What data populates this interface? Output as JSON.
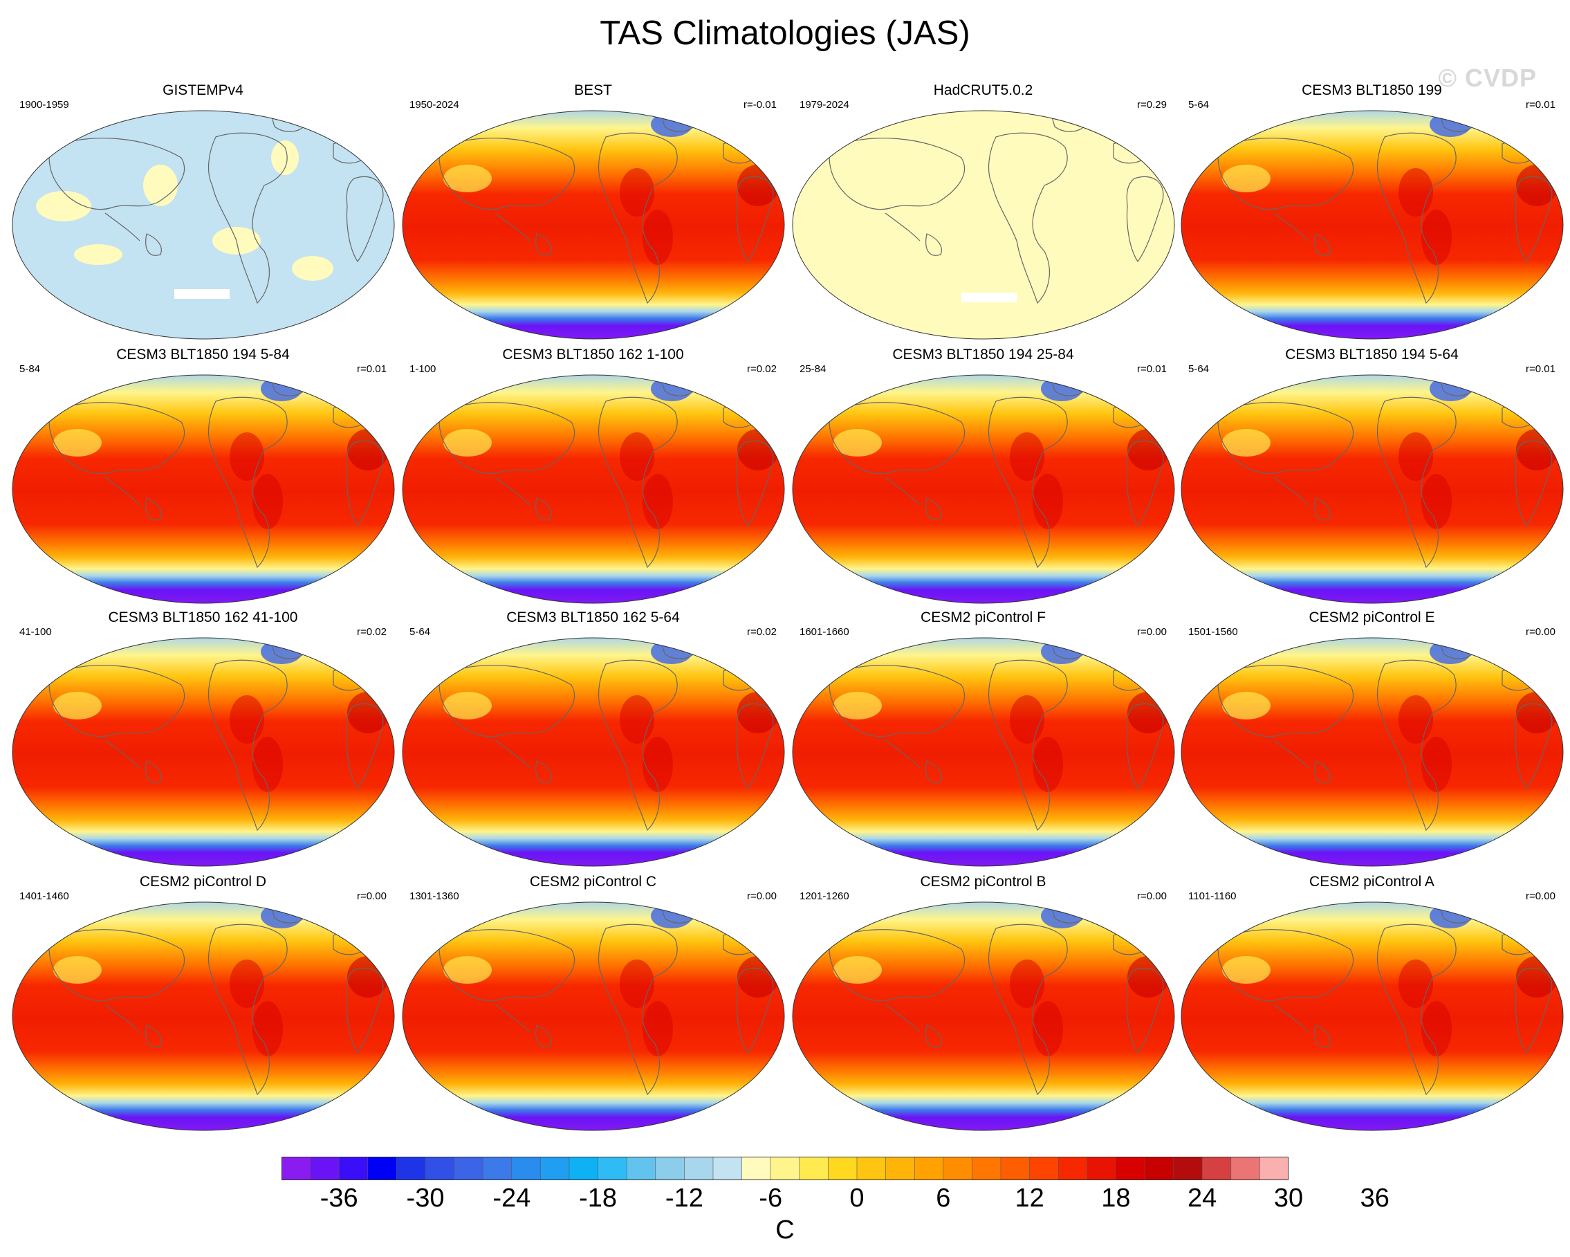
{
  "title": "TAS Climatologies (JAS)",
  "watermark": "© CVDP",
  "colorbar": {
    "units": "C",
    "tick_labels": [
      "-36",
      "-30",
      "-24",
      "-18",
      "-12",
      "-6",
      "0",
      "6",
      "12",
      "18",
      "24",
      "30",
      "36"
    ],
    "colors": [
      "#8a1cf2",
      "#6a14f6",
      "#3a0ef8",
      "#0000f6",
      "#1e34e8",
      "#3050e6",
      "#3c64e6",
      "#3b7ae8",
      "#2a8cee",
      "#1f9ef2",
      "#0db1f4",
      "#2fbcf4",
      "#62c4ee",
      "#8ccdec",
      "#a8d6ec",
      "#c3e2f2",
      "#fffbbd",
      "#fff58c",
      "#ffea50",
      "#ffd820",
      "#ffc510",
      "#ffb40a",
      "#ffa200",
      "#ff8d00",
      "#ff7600",
      "#ff5e00",
      "#ff4400",
      "#f72800",
      "#e81300",
      "#d90000",
      "#c80000",
      "#b40c0c",
      "#d64040",
      "#eb7474",
      "#fbb0b0"
    ]
  },
  "chart_data": [
    {
      "type": "map",
      "title": "GISTEMPv4",
      "period": "1900-1959",
      "corr": "",
      "field": "anom"
    },
    {
      "type": "map",
      "title": "BEST",
      "period": "1950-2024",
      "corr": "r=-0.01",
      "field": "clim"
    },
    {
      "type": "map",
      "title": "HadCRUT5.0.2",
      "period": "1979-2024",
      "corr": "r=0.29",
      "field": "flat"
    },
    {
      "type": "map",
      "title": "CESM3 BLT1850 199",
      "period": "5-64",
      "corr": "r=0.01",
      "field": "clim"
    },
    {
      "type": "map",
      "title": "CESM3 BLT1850 194 5-84",
      "period": "5-84",
      "corr": "r=0.01",
      "field": "clim"
    },
    {
      "type": "map",
      "title": "CESM3 BLT1850 162 1-100",
      "period": "1-100",
      "corr": "r=0.02",
      "field": "clim"
    },
    {
      "type": "map",
      "title": "CESM3 BLT1850 194 25-84",
      "period": "25-84",
      "corr": "r=0.01",
      "field": "clim"
    },
    {
      "type": "map",
      "title": "CESM3 BLT1850 194 5-64",
      "period": "5-64",
      "corr": "r=0.01",
      "field": "clim"
    },
    {
      "type": "map",
      "title": "CESM3 BLT1850 162 41-100",
      "period": "41-100",
      "corr": "r=0.02",
      "field": "clim"
    },
    {
      "type": "map",
      "title": "CESM3 BLT1850 162 5-64",
      "period": "5-64",
      "corr": "r=0.02",
      "field": "clim"
    },
    {
      "type": "map",
      "title": "CESM2 piControl F",
      "period": "1601-1660",
      "corr": "r=0.00",
      "field": "clim"
    },
    {
      "type": "map",
      "title": "CESM2 piControl E",
      "period": "1501-1560",
      "corr": "r=0.00",
      "field": "clim"
    },
    {
      "type": "map",
      "title": "CESM2 piControl D",
      "period": "1401-1460",
      "corr": "r=0.00",
      "field": "clim"
    },
    {
      "type": "map",
      "title": "CESM2 piControl C",
      "period": "1301-1360",
      "corr": "r=0.00",
      "field": "clim"
    },
    {
      "type": "map",
      "title": "CESM2 piControl B",
      "period": "1201-1260",
      "corr": "r=0.00",
      "field": "clim"
    },
    {
      "type": "map",
      "title": "CESM2 piControl A",
      "period": "1101-1160",
      "corr": "r=0.00",
      "field": "clim"
    }
  ]
}
